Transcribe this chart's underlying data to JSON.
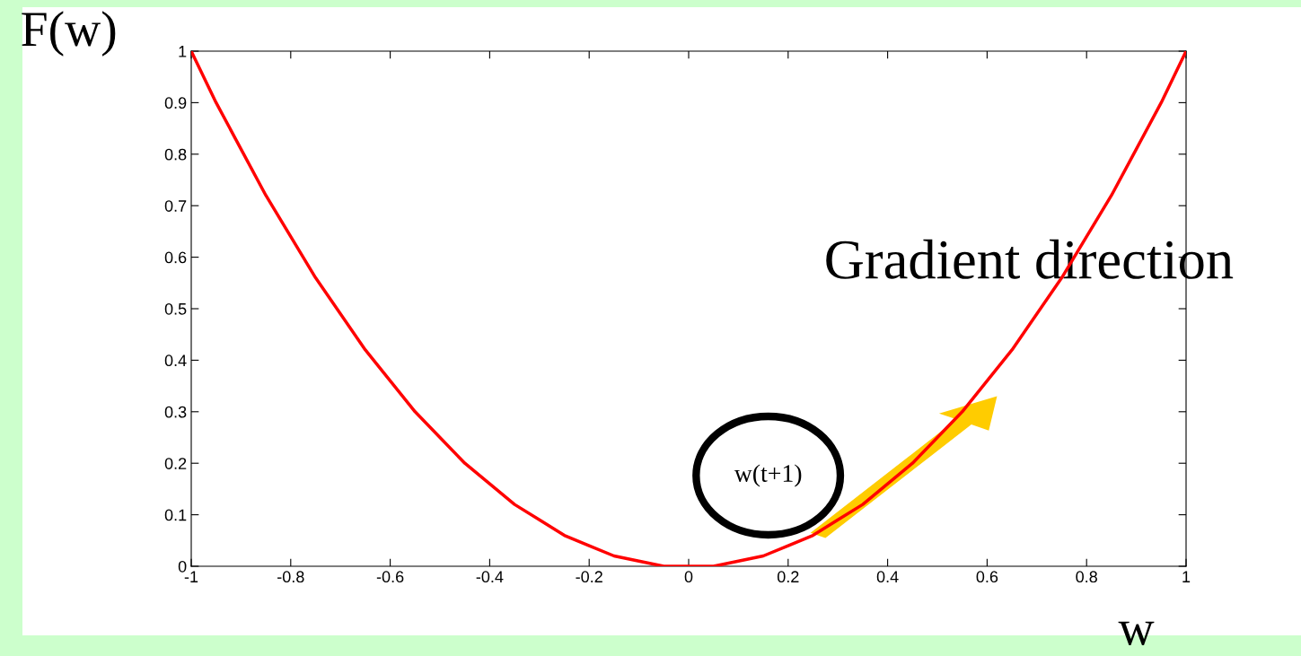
{
  "chart_data": {
    "type": "line",
    "xlabel": "w",
    "ylabel": "F(w)",
    "series": [
      {
        "color": "#ff0000",
        "x": [
          -1,
          -0.95,
          -0.9,
          -0.85,
          -0.8,
          -0.75,
          -0.7,
          -0.65,
          -0.6,
          -0.55,
          -0.5,
          -0.45,
          -0.4,
          -0.35,
          -0.3,
          -0.25,
          -0.2,
          -0.15,
          -0.1,
          -0.05,
          0,
          0.05,
          0.1,
          0.15,
          0.2,
          0.25,
          0.3,
          0.35,
          0.4,
          0.45,
          0.5,
          0.55,
          0.6,
          0.65,
          0.7,
          0.75,
          0.8,
          0.85,
          0.9,
          0.95,
          1
        ],
        "values": [
          1,
          0.9,
          0.81,
          0.72,
          0.64,
          0.56,
          0.49,
          0.42,
          0.36,
          0.3,
          0.25,
          0.2,
          0.16,
          0.12,
          0.09,
          0.06,
          0.04,
          0.02,
          0.01,
          0,
          0,
          0,
          0.01,
          0.02,
          0.04,
          0.06,
          0.09,
          0.12,
          0.16,
          0.2,
          0.25,
          0.3,
          0.36,
          0.42,
          0.49,
          0.56,
          0.64,
          0.72,
          0.81,
          0.9,
          1
        ]
      }
    ],
    "xlim": [
      -1,
      1
    ],
    "ylim": [
      0,
      1
    ],
    "xticks": [
      -1,
      -0.8,
      -0.6,
      -0.4,
      -0.2,
      0,
      0.2,
      0.4,
      0.6,
      0.8,
      1
    ],
    "yticks": [
      0,
      0.1,
      0.2,
      0.3,
      0.4,
      0.5,
      0.6,
      0.7,
      0.8,
      0.9,
      1
    ],
    "grid": false,
    "marker": "none",
    "line_style": "solid",
    "annotations": [
      "w(t+1)",
      "Gradient direction"
    ]
  }
}
